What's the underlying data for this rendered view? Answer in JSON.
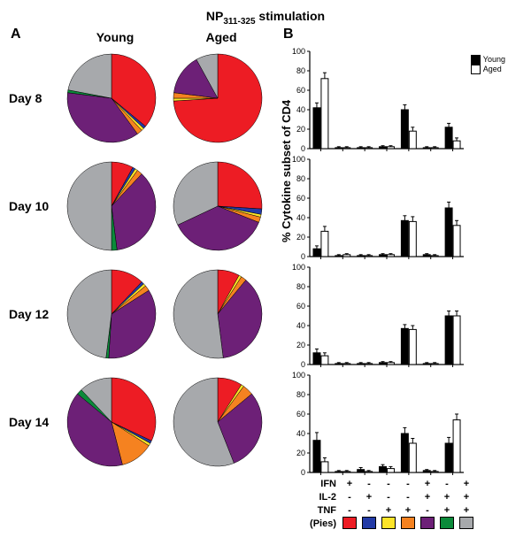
{
  "title_html": "NP<sub>311-325</sub> stimulation",
  "panel_A_label": "A",
  "panel_B_label": "B",
  "col_young": "Young",
  "col_aged": "Aged",
  "row_labels": [
    "Day 8",
    "Day 10",
    "Day 12",
    "Day 14"
  ],
  "y_axis_label": "% Cytokine subset of CD4",
  "colors": {
    "red": "#ed1c24",
    "blue": "#223aa6",
    "yellow": "#fde428",
    "orange": "#f58220",
    "purple": "#6d2077",
    "green": "#0b8a3a",
    "grey": "#a7a9ac"
  },
  "category_order": [
    "red",
    "blue",
    "yellow",
    "orange",
    "purple",
    "green",
    "grey"
  ],
  "category_markers": {
    "IFN": [
      "+",
      "-",
      "-",
      "-",
      "+",
      "-",
      "+"
    ],
    "IL-2": [
      "-",
      "+",
      "-",
      "-",
      "+",
      "+",
      "+"
    ],
    "TNF": [
      "-",
      "-",
      "+",
      "+",
      "-",
      "+",
      "+"
    ]
  },
  "pies_label": "(Pies)",
  "legend_bar": {
    "young": "Young",
    "aged": "Aged",
    "young_fill": "#000000",
    "aged_fill": "#ffffff"
  },
  "pies": {
    "Day 8": {
      "Young": {
        "red": 36,
        "blue": 1,
        "yellow": 1,
        "orange": 2,
        "purple": 37,
        "green": 1,
        "grey": 22
      },
      "Aged": {
        "red": 74,
        "blue": 0,
        "yellow": 1,
        "orange": 2,
        "purple": 15,
        "green": 0,
        "grey": 8
      }
    },
    "Day 10": {
      "Young": {
        "red": 8,
        "blue": 1,
        "yellow": 1,
        "orange": 2,
        "purple": 36,
        "green": 2,
        "grey": 50
      },
      "Aged": {
        "red": 26,
        "blue": 2,
        "yellow": 1,
        "orange": 2,
        "purple": 37,
        "green": 0,
        "grey": 32
      }
    },
    "Day 12": {
      "Young": {
        "red": 12,
        "blue": 1,
        "yellow": 1,
        "orange": 2,
        "purple": 35,
        "green": 1,
        "grey": 48
      },
      "Aged": {
        "red": 8,
        "blue": 0,
        "yellow": 1,
        "orange": 2,
        "purple": 37,
        "green": 0,
        "grey": 52
      }
    },
    "Day 14": {
      "Young": {
        "red": 32,
        "blue": 1,
        "yellow": 1,
        "orange": 12,
        "purple": 40,
        "green": 2,
        "grey": 12
      },
      "Aged": {
        "red": 9,
        "blue": 0,
        "yellow": 1,
        "orange": 4,
        "purple": 30,
        "green": 0,
        "grey": 56
      }
    }
  },
  "bars": {
    "ylim": [
      0,
      100
    ],
    "yticks": [
      0,
      20,
      40,
      60,
      80,
      100
    ],
    "Day 8": {
      "Young": {
        "red": 42,
        "blue": 1,
        "yellow": 1,
        "orange": 2,
        "purple": 40,
        "green": 1,
        "grey": 22
      },
      "Aged": {
        "red": 72,
        "blue": 1,
        "yellow": 1,
        "orange": 2,
        "purple": 18,
        "green": 1,
        "grey": 8
      },
      "err": {
        "Young": {
          "red": 5,
          "blue": 1,
          "yellow": 1,
          "orange": 1,
          "purple": 5,
          "green": 1,
          "grey": 4
        },
        "Aged": {
          "red": 6,
          "blue": 1,
          "yellow": 1,
          "orange": 1,
          "purple": 4,
          "green": 1,
          "grey": 3
        }
      }
    },
    "Day 10": {
      "Young": {
        "red": 8,
        "blue": 1,
        "yellow": 1,
        "orange": 2,
        "purple": 37,
        "green": 2,
        "grey": 50
      },
      "Aged": {
        "red": 26,
        "blue": 2,
        "yellow": 1,
        "orange": 2,
        "purple": 36,
        "green": 1,
        "grey": 32
      },
      "err": {
        "Young": {
          "red": 3,
          "blue": 1,
          "yellow": 1,
          "orange": 1,
          "purple": 5,
          "green": 1,
          "grey": 6
        },
        "Aged": {
          "red": 5,
          "blue": 1,
          "yellow": 1,
          "orange": 1,
          "purple": 5,
          "green": 1,
          "grey": 5
        }
      }
    },
    "Day 12": {
      "Young": {
        "red": 12,
        "blue": 1,
        "yellow": 1,
        "orange": 2,
        "purple": 37,
        "green": 1,
        "grey": 50
      },
      "Aged": {
        "red": 9,
        "blue": 1,
        "yellow": 1,
        "orange": 2,
        "purple": 36,
        "green": 1,
        "grey": 50
      },
      "err": {
        "Young": {
          "red": 4,
          "blue": 1,
          "yellow": 1,
          "orange": 1,
          "purple": 4,
          "green": 1,
          "grey": 5
        },
        "Aged": {
          "red": 3,
          "blue": 1,
          "yellow": 1,
          "orange": 1,
          "purple": 4,
          "green": 1,
          "grey": 5
        }
      }
    },
    "Day 14": {
      "Young": {
        "red": 33,
        "blue": 1,
        "yellow": 3,
        "orange": 6,
        "purple": 40,
        "green": 2,
        "grey": 30
      },
      "Aged": {
        "red": 11,
        "blue": 1,
        "yellow": 1,
        "orange": 4,
        "purple": 30,
        "green": 1,
        "grey": 54
      },
      "err": {
        "Young": {
          "red": 8,
          "blue": 1,
          "yellow": 2,
          "orange": 2,
          "purple": 6,
          "green": 1,
          "grey": 6
        },
        "Aged": {
          "red": 4,
          "blue": 1,
          "yellow": 1,
          "orange": 2,
          "purple": 5,
          "green": 1,
          "grey": 6
        }
      }
    }
  },
  "style": {
    "pie_stroke": "#000000",
    "pie_stroke_width": 0.5,
    "bar_stroke": "#000000",
    "axis_color": "#000000",
    "tick_fontsize": 9,
    "background": "#ffffff"
  }
}
